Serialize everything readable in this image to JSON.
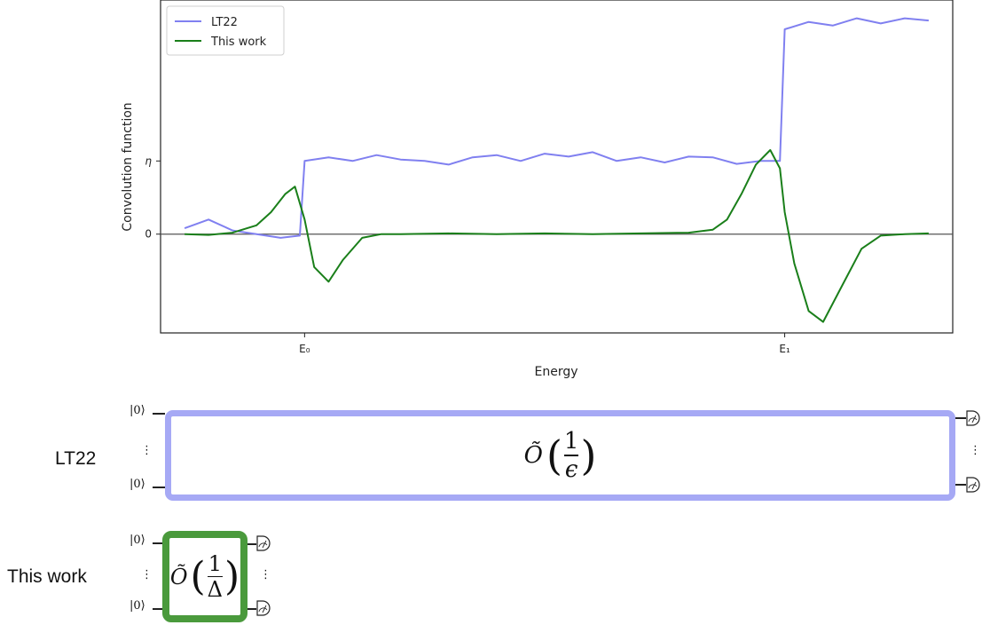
{
  "chart_data": {
    "type": "line",
    "xlabel": "Energy",
    "ylabel": "Convolution function",
    "x_ticks": [
      "E₀",
      "E₁"
    ],
    "y_ticks": [
      "η",
      "0"
    ],
    "eta": 1.0,
    "xlim": [
      -0.3,
      1.35
    ],
    "ylim": [
      -1.35,
      3.2
    ],
    "legend": {
      "position": "top-left"
    },
    "series": [
      {
        "name": "LT22",
        "color": "#8080f0",
        "x": [
          -0.25,
          -0.2,
          -0.15,
          -0.1,
          -0.05,
          -0.01,
          0.0,
          0.05,
          0.1,
          0.15,
          0.2,
          0.25,
          0.3,
          0.35,
          0.4,
          0.45,
          0.5,
          0.55,
          0.6,
          0.65,
          0.7,
          0.75,
          0.8,
          0.85,
          0.9,
          0.95,
          0.98,
          0.99,
          1.0,
          1.05,
          1.1,
          1.15,
          1.2,
          1.25,
          1.3
        ],
        "values": [
          0.08,
          0.2,
          0.05,
          0.0,
          -0.05,
          -0.02,
          1.0,
          1.05,
          1.0,
          1.08,
          1.02,
          1.0,
          0.95,
          1.05,
          1.08,
          1.0,
          1.1,
          1.06,
          1.12,
          1.0,
          1.05,
          0.98,
          1.06,
          1.05,
          0.96,
          1.0,
          1.0,
          1.0,
          2.8,
          2.9,
          2.85,
          2.95,
          2.88,
          2.95,
          2.92
        ]
      },
      {
        "name": "This work",
        "color": "#1a7f1a",
        "x": [
          -0.25,
          -0.2,
          -0.15,
          -0.1,
          -0.07,
          -0.04,
          -0.02,
          0.0,
          0.02,
          0.05,
          0.08,
          0.12,
          0.16,
          0.2,
          0.3,
          0.4,
          0.5,
          0.6,
          0.7,
          0.8,
          0.85,
          0.88,
          0.91,
          0.94,
          0.97,
          0.99,
          1.0,
          1.02,
          1.05,
          1.08,
          1.12,
          1.16,
          1.2,
          1.25,
          1.3
        ],
        "values": [
          0.0,
          -0.01,
          0.02,
          0.12,
          0.3,
          0.55,
          0.65,
          0.2,
          -0.45,
          -0.65,
          -0.35,
          -0.05,
          0.0,
          0.0,
          0.01,
          0.0,
          0.01,
          0.0,
          0.01,
          0.02,
          0.06,
          0.2,
          0.55,
          0.95,
          1.15,
          0.9,
          0.3,
          -0.4,
          -1.05,
          -1.2,
          -0.7,
          -0.2,
          -0.02,
          0.0,
          0.01
        ]
      }
    ]
  },
  "circuits": [
    {
      "label": "LT22",
      "ket_top": "|0⟩",
      "ket_bottom": "|0⟩",
      "vdots": "⋮",
      "complexity": {
        "symbol": "Õ",
        "numerator": "1",
        "denominator": "ϵ"
      },
      "color": "#a6a9f5"
    },
    {
      "label": "This work",
      "ket_top": "|0⟩",
      "ket_bottom": "|0⟩",
      "vdots": "⋮",
      "complexity": {
        "symbol": "Õ",
        "numerator": "1",
        "denominator": "Δ"
      },
      "color": "#4a9a3c"
    }
  ]
}
